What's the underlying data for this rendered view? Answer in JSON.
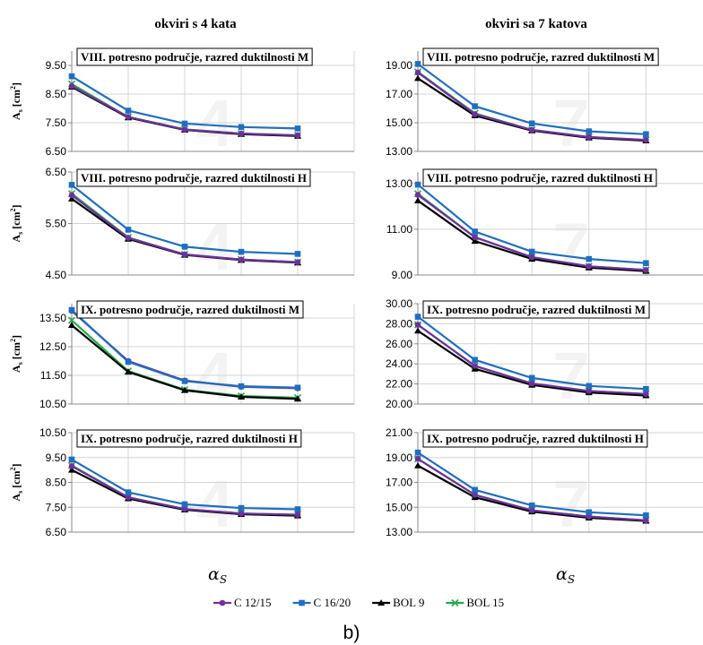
{
  "column_titles": [
    "okviri s 4 kata",
    "okviri sa 7 katova"
  ],
  "ylabel": "A",
  "ylabel_sub": "s",
  "ylabel_unit": " [cm",
  "ylabel_sup": "2",
  "ylabel_close": "]",
  "xlabel": "α",
  "xlabel_sub": "S",
  "figure_label": "b)",
  "colors": {
    "C 12/15": "#7030a0",
    "C 16/20": "#1f6fc0",
    "BOL 9": "#000000",
    "BOL 15": "#22aa44"
  },
  "legend": [
    {
      "name": "C 12/15",
      "marker": "circle"
    },
    {
      "name": "C 16/20",
      "marker": "square"
    },
    {
      "name": "BOL 9",
      "marker": "triangle"
    },
    {
      "name": "BOL 15",
      "marker": "cross"
    }
  ],
  "chart_data": [
    {
      "type": "line",
      "title": "VIII. potresno područje, razred duktilnosti M",
      "watermark": "4",
      "ylim": [
        6.5,
        10.0
      ],
      "yticks": [
        "6.50",
        "7.50",
        "8.50",
        "9.50"
      ],
      "categories": [
        1,
        2,
        3,
        4,
        5
      ],
      "series": [
        {
          "name": "C 12/15",
          "values": [
            8.78,
            7.7,
            7.26,
            7.12,
            7.06
          ]
        },
        {
          "name": "C 16/20",
          "values": [
            9.12,
            7.92,
            7.47,
            7.35,
            7.3
          ]
        },
        {
          "name": "BOL 9",
          "values": [
            8.75,
            7.68,
            7.25,
            7.1,
            7.04
          ]
        },
        {
          "name": "BOL 15",
          "values": [
            8.85,
            7.7,
            7.27,
            7.12,
            7.06
          ]
        }
      ]
    },
    {
      "type": "line",
      "title": "VIII. potresno područje, razred duktilnosti M",
      "watermark": "7",
      "ylim": [
        13.0,
        20.0
      ],
      "yticks": [
        "13.00",
        "15.00",
        "17.00",
        "19.00"
      ],
      "categories": [
        1,
        2,
        3,
        4,
        5
      ],
      "series": [
        {
          "name": "C 12/15",
          "values": [
            18.5,
            15.6,
            14.5,
            14.0,
            13.8
          ]
        },
        {
          "name": "C 16/20",
          "values": [
            19.1,
            16.15,
            14.95,
            14.4,
            14.2
          ]
        },
        {
          "name": "BOL 9",
          "values": [
            18.1,
            15.5,
            14.45,
            13.95,
            13.75
          ]
        },
        {
          "name": "BOL 15",
          "values": [
            18.55,
            15.65,
            14.5,
            14.0,
            13.8
          ]
        }
      ]
    },
    {
      "type": "line",
      "title": "VIII. potresno područje, razred duktilnosti H",
      "watermark": "4",
      "ylim": [
        4.5,
        6.5
      ],
      "yticks": [
        "4.50",
        "5.50",
        "6.50"
      ],
      "categories": [
        1,
        2,
        3,
        4,
        5
      ],
      "series": [
        {
          "name": "C 12/15",
          "values": [
            6.05,
            5.22,
            4.9,
            4.8,
            4.75
          ]
        },
        {
          "name": "C 16/20",
          "values": [
            6.25,
            5.38,
            5.05,
            4.95,
            4.91
          ]
        },
        {
          "name": "BOL 9",
          "values": [
            5.98,
            5.2,
            4.89,
            4.79,
            4.74
          ]
        },
        {
          "name": "BOL 15",
          "values": [
            6.08,
            5.23,
            4.9,
            4.8,
            4.75
          ]
        }
      ]
    },
    {
      "type": "line",
      "title": "VIII. potresno područje, razred duktilnosti H",
      "watermark": "7",
      "ylim": [
        9.0,
        13.5
      ],
      "yticks": [
        "9.00",
        "11.00",
        "13.00"
      ],
      "categories": [
        1,
        2,
        3,
        4,
        5
      ],
      "series": [
        {
          "name": "C 12/15",
          "values": [
            12.5,
            10.65,
            9.78,
            9.38,
            9.22
          ]
        },
        {
          "name": "C 16/20",
          "values": [
            12.95,
            10.9,
            10.02,
            9.7,
            9.52
          ]
        },
        {
          "name": "BOL 9",
          "values": [
            12.25,
            10.48,
            9.7,
            9.32,
            9.17
          ]
        },
        {
          "name": "BOL 15",
          "values": [
            12.55,
            10.65,
            9.78,
            9.38,
            9.22
          ]
        }
      ]
    },
    {
      "type": "line",
      "title": "IX. potresno područje, razred duktilnosti M",
      "watermark": "4",
      "ylim": [
        10.5,
        14.0
      ],
      "yticks": [
        "10.50",
        "11.50",
        "12.50",
        "13.50"
      ],
      "categories": [
        1,
        2,
        3,
        4,
        5
      ],
      "series": [
        {
          "name": "C 12/15",
          "values": [
            13.75,
            12.0,
            11.32,
            11.1,
            11.05
          ]
        },
        {
          "name": "C 16/20",
          "values": [
            13.78,
            11.97,
            11.3,
            11.12,
            11.07
          ]
        },
        {
          "name": "BOL 9",
          "values": [
            13.25,
            11.62,
            10.98,
            10.75,
            10.68
          ]
        },
        {
          "name": "BOL 15",
          "values": [
            13.42,
            11.65,
            11.0,
            10.78,
            10.72
          ]
        }
      ]
    },
    {
      "type": "line",
      "title": "IX. potresno područje, razred duktilnosti M",
      "watermark": "7",
      "ylim": [
        20.0,
        30.0
      ],
      "yticks": [
        "20.00",
        "22.00",
        "24.00",
        "26.00",
        "28.00",
        "30.00"
      ],
      "categories": [
        1,
        2,
        3,
        4,
        5
      ],
      "series": [
        {
          "name": "C 12/15",
          "values": [
            27.9,
            23.8,
            22.05,
            21.3,
            21.0
          ]
        },
        {
          "name": "C 16/20",
          "values": [
            28.7,
            24.4,
            22.6,
            21.8,
            21.5
          ]
        },
        {
          "name": "BOL 9",
          "values": [
            27.3,
            23.5,
            21.9,
            21.15,
            20.85
          ]
        },
        {
          "name": "BOL 15",
          "values": [
            27.9,
            23.8,
            22.05,
            21.3,
            21.0
          ]
        }
      ]
    },
    {
      "type": "line",
      "title": "IX. potresno područje, razred duktilnosti H",
      "watermark": "4",
      "ylim": [
        6.5,
        10.5
      ],
      "yticks": [
        "6.50",
        "7.50",
        "8.50",
        "9.50",
        "10.50"
      ],
      "categories": [
        1,
        2,
        3,
        4,
        5
      ],
      "series": [
        {
          "name": "C 12/15",
          "values": [
            9.15,
            7.9,
            7.43,
            7.25,
            7.2
          ]
        },
        {
          "name": "C 16/20",
          "values": [
            9.42,
            8.1,
            7.62,
            7.47,
            7.42
          ]
        },
        {
          "name": "BOL 9",
          "values": [
            9.0,
            7.85,
            7.4,
            7.22,
            7.16
          ]
        },
        {
          "name": "BOL 15",
          "values": [
            9.18,
            7.9,
            7.43,
            7.25,
            7.2
          ]
        }
      ]
    },
    {
      "type": "line",
      "title": "IX. potresno područje, razred duktilnosti H",
      "watermark": "7",
      "ylim": [
        13.0,
        21.0
      ],
      "yticks": [
        "13.00",
        "15.00",
        "17.00",
        "19.00",
        "21.00"
      ],
      "categories": [
        1,
        2,
        3,
        4,
        5
      ],
      "series": [
        {
          "name": "C 12/15",
          "values": [
            18.9,
            16.0,
            14.75,
            14.25,
            13.95
          ]
        },
        {
          "name": "C 16/20",
          "values": [
            19.4,
            16.4,
            15.15,
            14.6,
            14.35
          ]
        },
        {
          "name": "BOL 9",
          "values": [
            18.35,
            15.8,
            14.65,
            14.15,
            13.9
          ]
        },
        {
          "name": "BOL 15",
          "values": [
            18.9,
            16.0,
            14.75,
            14.25,
            13.95
          ]
        }
      ]
    }
  ]
}
